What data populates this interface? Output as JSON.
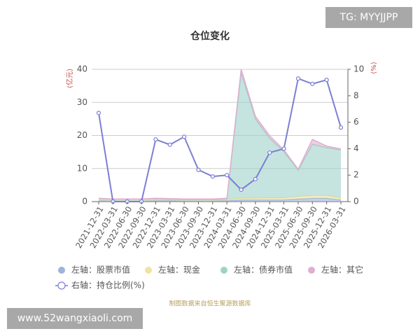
{
  "chart_data": {
    "type": "stacked-area-line",
    "title": "仓位变化",
    "y_label": "(亿元)",
    "y2_label": "(%)",
    "source": "制图数据来自恒生聚源数据库",
    "watermarks": [
      "TG: MYYJJPP",
      "www.52wangxiaoli.com"
    ],
    "categories": [
      "2021-12-31",
      "2022-03-31",
      "2022-06-30",
      "2022-09-30",
      "2022-12-31",
      "2023-03-31",
      "2023-06-30",
      "2023-09-30",
      "2023-12-31",
      "2024-03-31",
      "2024-06-30",
      "2024-09-30",
      "2024-12-31",
      "2025-03-31",
      "2025-06-30",
      "2025-09-30",
      "2025-12-31",
      "2026-03-31"
    ],
    "ylim": [
      0,
      40
    ],
    "yticks": [
      0,
      10,
      20,
      30,
      40
    ],
    "y2lim": [
      0,
      10
    ],
    "y2ticks": [
      0,
      2,
      4,
      6,
      8,
      10
    ],
    "grid": true,
    "series": [
      {
        "name": "左轴：股票市值",
        "color": "#9db3dd",
        "stack": true,
        "values": [
          0.3,
          0.2,
          0.2,
          0.2,
          0.3,
          0.3,
          0.2,
          0.2,
          0.2,
          0.3,
          0.5,
          0.5,
          0.5,
          0.5,
          0.8,
          1.0,
          1.0,
          0.5
        ]
      },
      {
        "name": "左轴：现金",
        "color": "#efe3a0",
        "stack": true,
        "values": [
          0.5,
          0.5,
          0.5,
          0.5,
          0.5,
          0.4,
          0.4,
          0.4,
          0.4,
          0.4,
          0.5,
          0.5,
          0.6,
          0.6,
          0.7,
          0.8,
          0.8,
          0.6
        ]
      },
      {
        "name": "左轴：债券市值",
        "color": "#9fd2c9",
        "stack": true,
        "values": [
          0,
          0,
          0,
          0,
          0,
          0,
          0,
          0,
          0,
          0,
          38,
          24,
          18,
          14,
          8,
          15.5,
          14.5,
          14.5
        ]
      },
      {
        "name": "左轴：其它",
        "color": "#e0afd0",
        "stack": true,
        "values": [
          0.2,
          0.1,
          0.1,
          0.1,
          0.2,
          0.2,
          0.2,
          0.2,
          0.2,
          0.3,
          1,
          0.8,
          0.8,
          0.5,
          0.3,
          1.5,
          0.5,
          0.3
        ]
      },
      {
        "name": "右轴：持仓比例(%)",
        "color": "#7b7fd4",
        "axis": "y2",
        "values": [
          6.7,
          0,
          0,
          0,
          4.7,
          4.3,
          4.9,
          2.4,
          1.9,
          2.0,
          0.9,
          1.7,
          3.7,
          4.0,
          9.3,
          8.9,
          9.2,
          5.6
        ]
      }
    ]
  }
}
